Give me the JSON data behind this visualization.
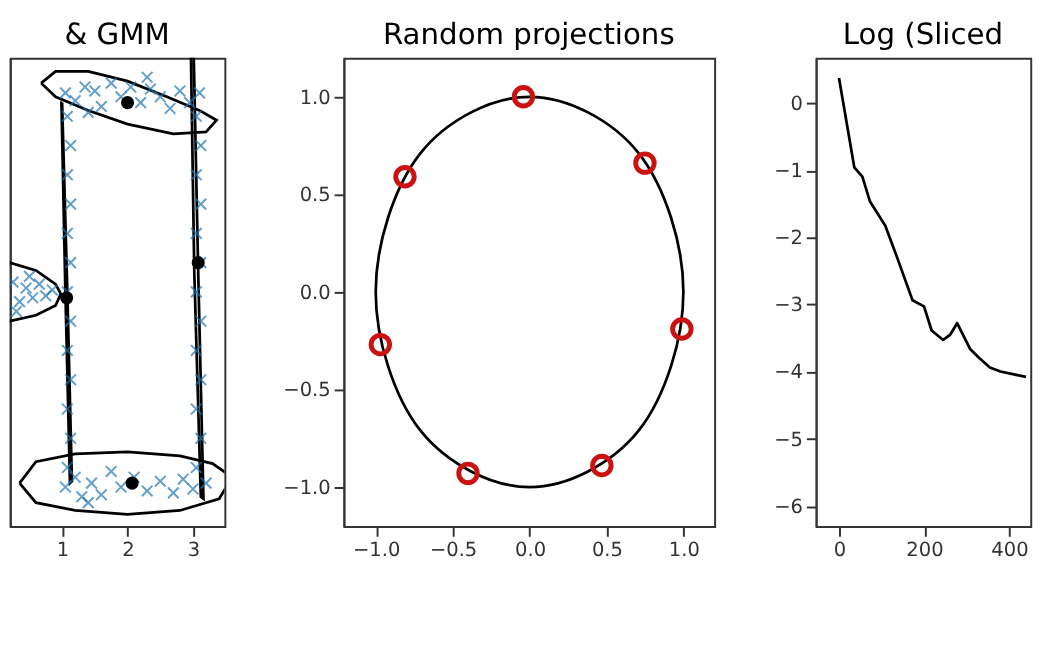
{
  "chart_data": [
    {
      "type": "scatter",
      "title": "& GMM",
      "xlim": [
        0.2,
        3.48
      ],
      "ylim": [
        -1.2,
        1.2
      ],
      "xticks": [
        1,
        2,
        3
      ],
      "tick_labels": "x",
      "grid": false,
      "series": [
        {
          "marker": "cross",
          "color": "#1f77b4",
          "x": [
            1.05,
            1.2,
            1.35,
            1.5,
            1.6,
            1.75,
            1.9,
            2.05,
            2.2,
            2.35,
            2.5,
            2.65,
            2.8,
            2.95,
            3.1,
            1.4,
            2.3,
            1.08,
            1.13,
            1.08,
            1.13,
            1.08,
            1.13,
            1.08,
            1.13,
            1.08,
            1.13,
            1.08,
            1.13,
            1.08,
            3.05,
            3.12,
            3.05,
            3.12,
            3.05,
            3.12,
            3.05,
            3.12,
            3.05,
            3.12,
            3.05,
            3.12,
            3.05,
            1.05,
            1.2,
            1.3,
            1.45,
            1.6,
            1.75,
            1.9,
            2.1,
            2.3,
            2.5,
            2.7,
            2.85,
            3.0,
            3.2,
            1.4,
            0.25,
            0.35,
            0.45,
            0.55,
            0.65,
            0.75,
            0.85,
            0.3,
            0.5
          ],
          "values": [
            1.02,
            0.98,
            1.05,
            1.03,
            0.95,
            1.07,
            1.0,
            1.05,
            0.97,
            1.04,
            1.0,
            0.94,
            1.03,
            0.97,
            1.02,
            0.92,
            1.1,
            0.9,
            0.75,
            0.6,
            0.45,
            0.3,
            0.15,
            0.0,
            -0.15,
            -0.3,
            -0.45,
            -0.6,
            -0.75,
            -0.9,
            0.9,
            0.75,
            0.6,
            0.45,
            0.3,
            0.15,
            0.0,
            -0.15,
            -0.3,
            -0.45,
            -0.6,
            -0.75,
            -0.9,
            -1.0,
            -0.95,
            -1.05,
            -0.98,
            -1.04,
            -0.92,
            -1.0,
            -0.95,
            -1.02,
            -0.97,
            -1.03,
            -0.96,
            -1.01,
            -0.98,
            -1.08,
            0.05,
            -0.05,
            0.02,
            -0.03,
            0.04,
            -0.02,
            0.01,
            -0.1,
            0.08
          ]
        },
        {
          "marker": "circle",
          "color": "#000000",
          "x": [
            2.0,
            2.07,
            3.08,
            1.07
          ],
          "values": [
            0.97,
            -0.98,
            0.15,
            -0.03
          ]
        }
      ]
    },
    {
      "type": "scatter",
      "title": "Random projections",
      "xlim": [
        -1.21,
        1.2
      ],
      "ylim": [
        -1.2,
        1.2
      ],
      "grid": false,
      "xticks": [
        {
          "value": -1.0,
          "label": "−1.0"
        },
        {
          "value": -0.5,
          "label": "−0.5"
        },
        {
          "value": 0.0,
          "label": "0.0"
        },
        {
          "value": 0.5,
          "label": "0.5"
        },
        {
          "value": 1.0,
          "label": "1.0"
        }
      ],
      "yticks": [
        {
          "value": -1.0,
          "label": "−1.0"
        },
        {
          "value": -0.5,
          "label": "−0.5"
        },
        {
          "value": 0.0,
          "label": "0.0"
        },
        {
          "value": 0.5,
          "label": "0.5"
        },
        {
          "value": 1.0,
          "label": "1.0"
        }
      ],
      "series": [
        {
          "marker": "circle",
          "color": "#cc1111",
          "x": [
            -0.04,
            0.75,
            -0.81,
            0.99,
            -0.97,
            -0.4,
            0.47
          ],
          "values": [
            1.0,
            0.66,
            0.59,
            -0.19,
            -0.27,
            -0.93,
            -0.89
          ]
        }
      ]
    },
    {
      "type": "line",
      "title": "Log (Sliced",
      "xlim": [
        -55,
        450
      ],
      "ylim": [
        -6.3,
        0.67
      ],
      "xticks": [
        0,
        200,
        400
      ],
      "grid": false,
      "yticks": [
        {
          "value": -6,
          "label": "−6"
        },
        {
          "value": -5,
          "label": "−5"
        },
        {
          "value": -4,
          "label": "−4"
        },
        {
          "value": -3,
          "label": "−3"
        },
        {
          "value": -2,
          "label": "−2"
        },
        {
          "value": -1,
          "label": "−1"
        },
        0
      ],
      "series": [
        {
          "color": "#000000",
          "x": [
            0,
            36,
            55,
            73,
            109,
            136,
            173,
            200,
            218,
            245,
            262,
            278,
            309,
            330,
            355,
            380,
            409,
            440
          ],
          "values": [
            0.37,
            -0.96,
            -1.1,
            -1.47,
            -1.83,
            -2.29,
            -2.94,
            -3.03,
            -3.39,
            -3.53,
            -3.45,
            -3.28,
            -3.67,
            -3.8,
            -3.94,
            -4.0,
            -4.04,
            -4.08
          ]
        }
      ]
    }
  ]
}
